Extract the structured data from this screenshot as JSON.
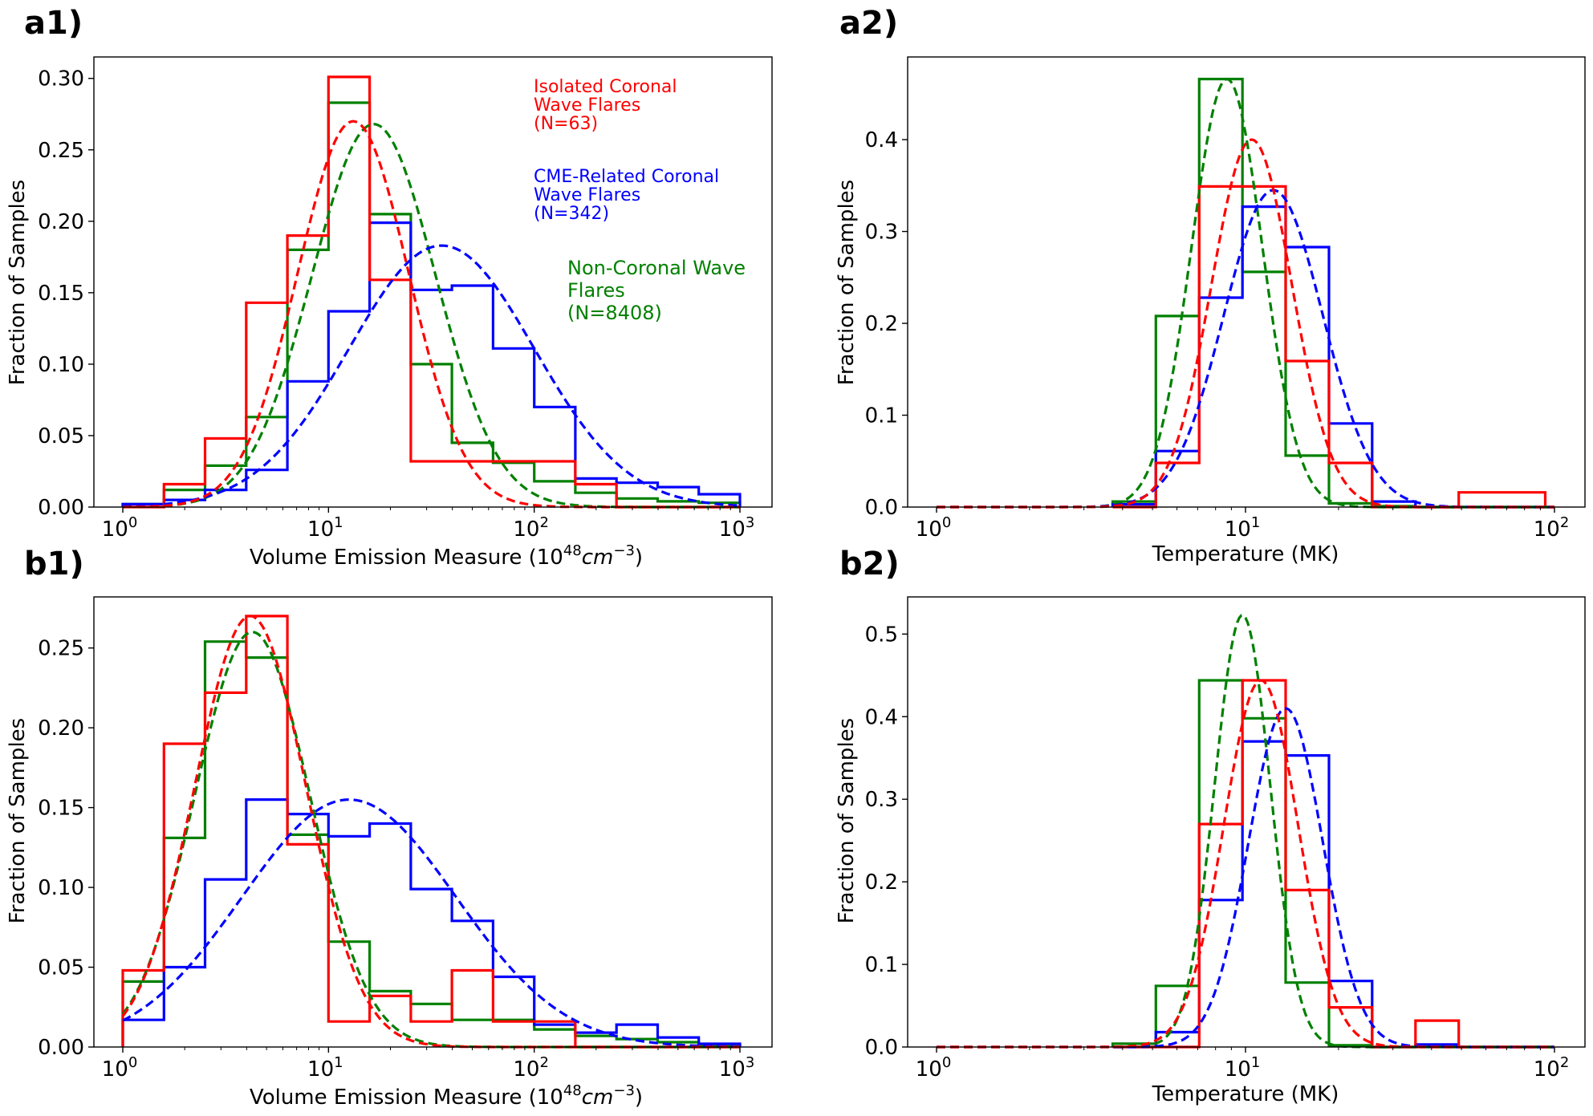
{
  "panels": [
    {
      "id": "a1",
      "label": "a1)",
      "ylabel": "Fraction of Samples",
      "xlabel": "Volume Emission Measure (10",
      "xlabel_exp": "48",
      "xlabel_unit": "cm",
      "xlabel_unit_exp": "−3",
      "xlabel_close": ")"
    },
    {
      "id": "a2",
      "label": "a2)",
      "ylabel": "Fraction of Samples",
      "xlabel": "Temperature (MK)"
    },
    {
      "id": "b1",
      "label": "b1)",
      "ylabel": "Fraction of Samples",
      "xlabel": "Volume Emission Measure (10",
      "xlabel_exp": "48",
      "xlabel_unit": "cm",
      "xlabel_unit_exp": "−3",
      "xlabel_close": ")"
    },
    {
      "id": "b2",
      "label": "b2)",
      "ylabel": "Fraction of Samples",
      "xlabel": "Temperature (MK)"
    }
  ],
  "legend": {
    "isolated": {
      "lines": [
        "Isolated Coronal",
        "Wave Flares",
        "(N=63)"
      ],
      "color": "#ff0000"
    },
    "cme": {
      "lines": [
        "CME-Related Coronal",
        "Wave Flares",
        "(N=342)"
      ],
      "color": "#0000ff"
    },
    "noncw": {
      "lines": [
        "Non-Coronal Wave",
        "Flares",
        "(N=8408)"
      ],
      "color": "#008000"
    }
  },
  "colors": {
    "isolated": "#ff0000",
    "cme": "#0000ff",
    "noncw": "#008000"
  },
  "chart_data": [
    {
      "panel": "a1",
      "type": "histogram",
      "xscale": "log",
      "xlim": [
        1,
        1000
      ],
      "ylim": [
        0,
        0.315
      ],
      "xticks": [
        {
          "base": "10",
          "exp": "0"
        },
        {
          "base": "10",
          "exp": "1"
        },
        {
          "base": "10",
          "exp": "2"
        },
        {
          "base": "10",
          "exp": "3"
        }
      ],
      "yticks": [
        "0.00",
        "0.05",
        "0.10",
        "0.15",
        "0.20",
        "0.25",
        "0.30"
      ],
      "ytick_values": [
        0,
        0.05,
        0.1,
        0.15,
        0.2,
        0.25,
        0.3
      ],
      "bin_edges_log": [
        0,
        0.2,
        0.4,
        0.6,
        0.8,
        1.0,
        1.2,
        1.4,
        1.6,
        1.8,
        2.0,
        2.2,
        2.4,
        2.6,
        2.8,
        3.0
      ],
      "series": [
        {
          "name": "Non-Coronal Wave Flares",
          "key": "noncw",
          "values": [
            0.002,
            0.012,
            0.029,
            0.063,
            0.18,
            0.283,
            0.205,
            0.1,
            0.045,
            0.031,
            0.018,
            0.01,
            0.006,
            0.004,
            0.003
          ],
          "fit": {
            "amp": 0.268,
            "mu": 1.22,
            "sigma": 0.3
          }
        },
        {
          "name": "CME-Related Coronal Wave Flares",
          "key": "cme",
          "values": [
            0.002,
            0.005,
            0.012,
            0.026,
            0.088,
            0.137,
            0.199,
            0.152,
            0.155,
            0.111,
            0.07,
            0.02,
            0.017,
            0.014,
            0.009
          ],
          "fit": {
            "amp": 0.183,
            "mu": 1.55,
            "sigma": 0.45
          }
        },
        {
          "name": "Isolated Coronal Wave Flares",
          "key": "isolated",
          "values": [
            0,
            0.016,
            0.048,
            0.143,
            0.19,
            0.301,
            0.159,
            0.032,
            0.032,
            0.032,
            0.032,
            0.016,
            0,
            0,
            0
          ],
          "fit": {
            "amp": 0.27,
            "mu": 1.12,
            "sigma": 0.27
          }
        }
      ]
    },
    {
      "panel": "a2",
      "type": "histogram",
      "xscale": "log",
      "xlim": [
        1,
        100
      ],
      "ylim": [
        0,
        0.49
      ],
      "xticks": [
        {
          "base": "10",
          "exp": "0"
        },
        {
          "base": "10",
          "exp": "1"
        },
        {
          "base": "10",
          "exp": "2"
        }
      ],
      "yticks": [
        "0.0",
        "0.1",
        "0.2",
        "0.3",
        "0.4"
      ],
      "ytick_values": [
        0,
        0.1,
        0.2,
        0.3,
        0.4
      ],
      "bin_edges_log": [
        0.57,
        0.71,
        0.85,
        0.99,
        1.13,
        1.27,
        1.41,
        1.55,
        1.69,
        1.83,
        1.97,
        2.0
      ],
      "series": [
        {
          "name": "Non-Coronal Wave Flares",
          "key": "noncw",
          "values": [
            0.006,
            0.208,
            0.466,
            0.256,
            0.056,
            0.004,
            0.001,
            0,
            0,
            0,
            0
          ],
          "fit": {
            "amp": 0.466,
            "mu": 0.94,
            "sigma": 0.115
          }
        },
        {
          "name": "CME-Related Coronal Wave Flares",
          "key": "cme",
          "values": [
            0.003,
            0.061,
            0.228,
            0.327,
            0.283,
            0.091,
            0.006,
            0,
            0,
            0,
            0
          ],
          "fit": {
            "amp": 0.345,
            "mu": 1.09,
            "sigma": 0.16
          }
        },
        {
          "name": "Isolated Coronal Wave Flares",
          "key": "isolated",
          "values": [
            0,
            0.048,
            0.349,
            0.349,
            0.159,
            0.048,
            0,
            0,
            0.016,
            0.016,
            0
          ],
          "fit": {
            "amp": 0.4,
            "mu": 1.02,
            "sigma": 0.13
          }
        }
      ]
    },
    {
      "panel": "b1",
      "type": "histogram",
      "xscale": "log",
      "xlim": [
        1,
        1000
      ],
      "ylim": [
        0,
        0.282
      ],
      "xticks": [
        {
          "base": "10",
          "exp": "0"
        },
        {
          "base": "10",
          "exp": "1"
        },
        {
          "base": "10",
          "exp": "2"
        },
        {
          "base": "10",
          "exp": "3"
        }
      ],
      "yticks": [
        "0.00",
        "0.05",
        "0.10",
        "0.15",
        "0.20",
        "0.25"
      ],
      "ytick_values": [
        0,
        0.05,
        0.1,
        0.15,
        0.2,
        0.25
      ],
      "bin_edges_log": [
        0,
        0.2,
        0.4,
        0.6,
        0.8,
        1.0,
        1.2,
        1.4,
        1.6,
        1.8,
        2.0,
        2.2,
        2.4,
        2.6,
        2.8,
        3.0
      ],
      "series": [
        {
          "name": "Non-Coronal Wave Flares",
          "key": "noncw",
          "values": [
            0.041,
            0.131,
            0.254,
            0.244,
            0.133,
            0.066,
            0.035,
            0.027,
            0.017,
            0.017,
            0.011,
            0.007,
            0.005,
            0.003,
            0.001
          ],
          "fit": {
            "amp": 0.26,
            "mu": 0.63,
            "sigma": 0.28
          }
        },
        {
          "name": "CME-Related Coronal Wave Flares",
          "key": "cme",
          "values": [
            0.017,
            0.05,
            0.105,
            0.155,
            0.146,
            0.132,
            0.14,
            0.099,
            0.079,
            0.044,
            0.014,
            0.009,
            0.014,
            0.006,
            0.002
          ],
          "fit": {
            "amp": 0.155,
            "mu": 1.1,
            "sigma": 0.52
          }
        },
        {
          "name": "Isolated Coronal Wave Flares",
          "key": "isolated",
          "values": [
            0.048,
            0.19,
            0.222,
            0.27,
            0.127,
            0.016,
            0.032,
            0.016,
            0.048,
            0.016,
            0.016,
            0,
            0,
            0,
            0
          ],
          "fit": {
            "amp": 0.27,
            "mu": 0.62,
            "sigma": 0.27
          }
        }
      ]
    },
    {
      "panel": "b2",
      "type": "histogram",
      "xscale": "log",
      "xlim": [
        1,
        100
      ],
      "ylim": [
        0,
        0.545
      ],
      "xticks": [
        {
          "base": "10",
          "exp": "0"
        },
        {
          "base": "10",
          "exp": "1"
        },
        {
          "base": "10",
          "exp": "2"
        }
      ],
      "yticks": [
        "0.0",
        "0.1",
        "0.2",
        "0.3",
        "0.4",
        "0.5"
      ],
      "ytick_values": [
        0,
        0.1,
        0.2,
        0.3,
        0.4,
        0.5
      ],
      "bin_edges_log": [
        0.57,
        0.71,
        0.85,
        0.99,
        1.13,
        1.27,
        1.41,
        1.55,
        1.69,
        1.83,
        1.97,
        2.0
      ],
      "series": [
        {
          "name": "Non-Coronal Wave Flares",
          "key": "noncw",
          "values": [
            0.004,
            0.074,
            0.444,
            0.398,
            0.078,
            0.002,
            0,
            0,
            0,
            0,
            0
          ],
          "fit": {
            "amp": 0.523,
            "mu": 0.99,
            "sigma": 0.09
          }
        },
        {
          "name": "CME-Related Coronal Wave Flares",
          "key": "cme",
          "values": [
            0,
            0.018,
            0.178,
            0.37,
            0.353,
            0.08,
            0,
            0.003,
            0,
            0,
            0
          ],
          "fit": {
            "amp": 0.41,
            "mu": 1.13,
            "sigma": 0.12
          }
        },
        {
          "name": "Isolated Coronal Wave Flares",
          "key": "isolated",
          "values": [
            0,
            0,
            0.27,
            0.444,
            0.19,
            0.048,
            0,
            0.032,
            0,
            0,
            0
          ],
          "fit": {
            "amp": 0.444,
            "mu": 1.05,
            "sigma": 0.12
          }
        }
      ]
    }
  ]
}
